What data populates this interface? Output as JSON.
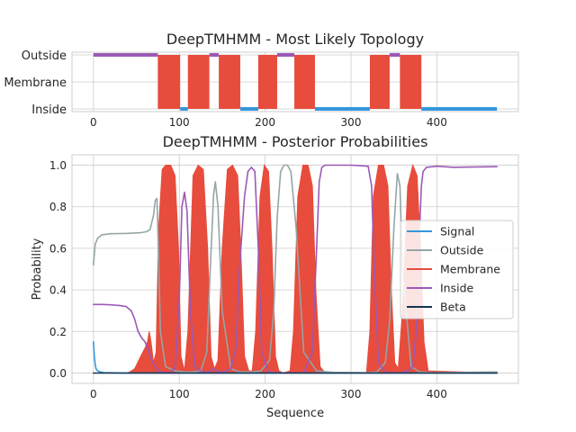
{
  "chart_data": [
    {
      "type": "line",
      "title": "DeepTMHMM - Most Likely Topology",
      "xlim": [
        -25,
        495
      ],
      "xticks": [
        0,
        100,
        200,
        300,
        400
      ],
      "ytick_labels": [
        "Outside",
        "Membrane",
        "Inside"
      ],
      "grid": true,
      "regions": [
        {
          "label": "Outside",
          "start": 0,
          "end": 75
        },
        {
          "label": "Membrane",
          "start": 75,
          "end": 101
        },
        {
          "label": "Inside",
          "start": 101,
          "end": 110
        },
        {
          "label": "Membrane",
          "start": 110,
          "end": 135
        },
        {
          "label": "Outside",
          "start": 135,
          "end": 146
        },
        {
          "label": "Membrane",
          "start": 146,
          "end": 171
        },
        {
          "label": "Inside",
          "start": 171,
          "end": 192
        },
        {
          "label": "Membrane",
          "start": 192,
          "end": 214
        },
        {
          "label": "Outside",
          "start": 214,
          "end": 234
        },
        {
          "label": "Membrane",
          "start": 234,
          "end": 258
        },
        {
          "label": "Inside",
          "start": 258,
          "end": 322
        },
        {
          "label": "Membrane",
          "start": 322,
          "end": 345
        },
        {
          "label": "Outside",
          "start": 345,
          "end": 357
        },
        {
          "label": "Membrane",
          "start": 357,
          "end": 382
        },
        {
          "label": "Inside",
          "start": 382,
          "end": 470
        }
      ]
    },
    {
      "type": "line",
      "title": "DeepTMHMM - Posterior Probabilities",
      "xlabel": "Sequence",
      "ylabel": "Probability",
      "xlim": [
        -25,
        495
      ],
      "ylim": [
        -0.05,
        1.05
      ],
      "xticks": [
        0,
        100,
        200,
        300,
        400
      ],
      "yticks": [
        "0.0",
        "0.2",
        "0.4",
        "0.6",
        "0.8",
        "1.0"
      ],
      "grid": true,
      "legend_position": "center-right",
      "legend": [
        "Signal",
        "Outside",
        "Membrane",
        "Inside",
        "Beta"
      ],
      "series": [
        {
          "name": "Signal",
          "color": "#3498db",
          "x": [
            0,
            1,
            2,
            3,
            5,
            8,
            12,
            20,
            40,
            470
          ],
          "y": [
            0.15,
            0.08,
            0.04,
            0.02,
            0.01,
            0.005,
            0.002,
            0.001,
            0.0,
            0.0
          ]
        },
        {
          "name": "Outside",
          "color": "#95a5a6",
          "x": [
            0,
            2,
            5,
            10,
            20,
            40,
            55,
            62,
            66,
            70,
            72,
            74,
            76,
            78,
            84,
            95,
            105,
            115,
            125,
            132,
            136,
            140,
            142,
            145,
            150,
            160,
            170,
            185,
            195,
            205,
            210,
            214,
            218,
            222,
            226,
            230,
            236,
            245,
            260,
            280,
            320,
            330,
            340,
            345,
            350,
            354,
            357,
            360,
            370,
            380,
            395,
            420,
            470
          ],
          "y": [
            0.52,
            0.62,
            0.65,
            0.665,
            0.67,
            0.672,
            0.675,
            0.68,
            0.69,
            0.76,
            0.83,
            0.84,
            0.55,
            0.2,
            0.03,
            0.01,
            0.005,
            0.005,
            0.01,
            0.1,
            0.5,
            0.86,
            0.92,
            0.8,
            0.3,
            0.02,
            0.005,
            0.005,
            0.01,
            0.06,
            0.3,
            0.75,
            0.97,
            1.0,
            1.0,
            0.97,
            0.7,
            0.1,
            0.01,
            0.003,
            0.002,
            0.005,
            0.05,
            0.25,
            0.7,
            0.96,
            0.9,
            0.5,
            0.03,
            0.005,
            0.002,
            0.003,
            0.005
          ]
        },
        {
          "name": "Membrane",
          "color": "#e74c3c",
          "x": [
            0,
            40,
            48,
            55,
            60,
            63,
            65,
            67,
            70,
            73,
            76,
            80,
            84,
            90,
            95,
            99,
            102,
            106,
            110,
            116,
            122,
            128,
            133,
            137,
            141,
            145,
            150,
            156,
            162,
            168,
            172,
            176,
            181,
            185,
            189,
            194,
            199,
            204,
            208,
            212,
            216,
            221,
            229,
            233,
            238,
            244,
            250,
            255,
            259,
            264,
            270,
            318,
            322,
            326,
            332,
            338,
            343,
            347,
            351,
            355,
            360,
            366,
            372,
            377,
            381,
            385,
            390,
            470
          ],
          "y": [
            0.0,
            0.0,
            0.02,
            0.08,
            0.12,
            0.15,
            0.2,
            0.15,
            0.05,
            0.1,
            0.7,
            0.98,
            1.0,
            1.0,
            0.95,
            0.6,
            0.08,
            0.01,
            0.2,
            0.95,
            1.0,
            0.98,
            0.6,
            0.08,
            0.02,
            0.06,
            0.6,
            0.98,
            1.0,
            0.95,
            0.55,
            0.08,
            0.01,
            0.01,
            0.2,
            0.85,
            1.0,
            0.97,
            0.6,
            0.08,
            0.01,
            0.0,
            0.01,
            0.2,
            0.85,
            1.0,
            1.0,
            0.9,
            0.4,
            0.03,
            0.0,
            0.0,
            0.2,
            0.85,
            1.0,
            1.0,
            0.9,
            0.4,
            0.05,
            0.02,
            0.3,
            0.9,
            1.0,
            0.95,
            0.6,
            0.15,
            0.01,
            0.0
          ]
        },
        {
          "name": "Inside",
          "color": "#9b59b6",
          "x": [
            0,
            10,
            20,
            30,
            38,
            44,
            48,
            52,
            56,
            60,
            64,
            68,
            72,
            76,
            80,
            88,
            95,
            100,
            103,
            106,
            109,
            113,
            118,
            126,
            134,
            140,
            146,
            150,
            160,
            166,
            170,
            176,
            180,
            184,
            188,
            192,
            196,
            204,
            214,
            230,
            245,
            255,
            260,
            263,
            266,
            270,
            280,
            300,
            320,
            324,
            327,
            332,
            340,
            348,
            356,
            360,
            366,
            372,
            376,
            379,
            382,
            384,
            388,
            400,
            420,
            470
          ],
          "y": [
            0.33,
            0.33,
            0.328,
            0.325,
            0.32,
            0.3,
            0.26,
            0.2,
            0.17,
            0.15,
            0.11,
            0.06,
            0.03,
            0.01,
            0.003,
            0.002,
            0.02,
            0.35,
            0.8,
            0.87,
            0.78,
            0.3,
            0.03,
            0.005,
            0.005,
            0.02,
            0.005,
            0.003,
            0.02,
            0.12,
            0.5,
            0.85,
            0.97,
            0.99,
            0.97,
            0.6,
            0.1,
            0.005,
            0.002,
            0.001,
            0.002,
            0.1,
            0.6,
            0.92,
            0.99,
            1.0,
            1.0,
            1.0,
            0.995,
            0.9,
            0.5,
            0.05,
            0.002,
            0.001,
            0.002,
            0.003,
            0.01,
            0.03,
            0.2,
            0.6,
            0.9,
            0.97,
            0.99,
            0.995,
            0.99,
            0.993
          ]
        },
        {
          "name": "Beta",
          "color": "#14344f",
          "x": [
            0,
            470
          ],
          "y": [
            0.0,
            0.0
          ]
        }
      ]
    }
  ]
}
